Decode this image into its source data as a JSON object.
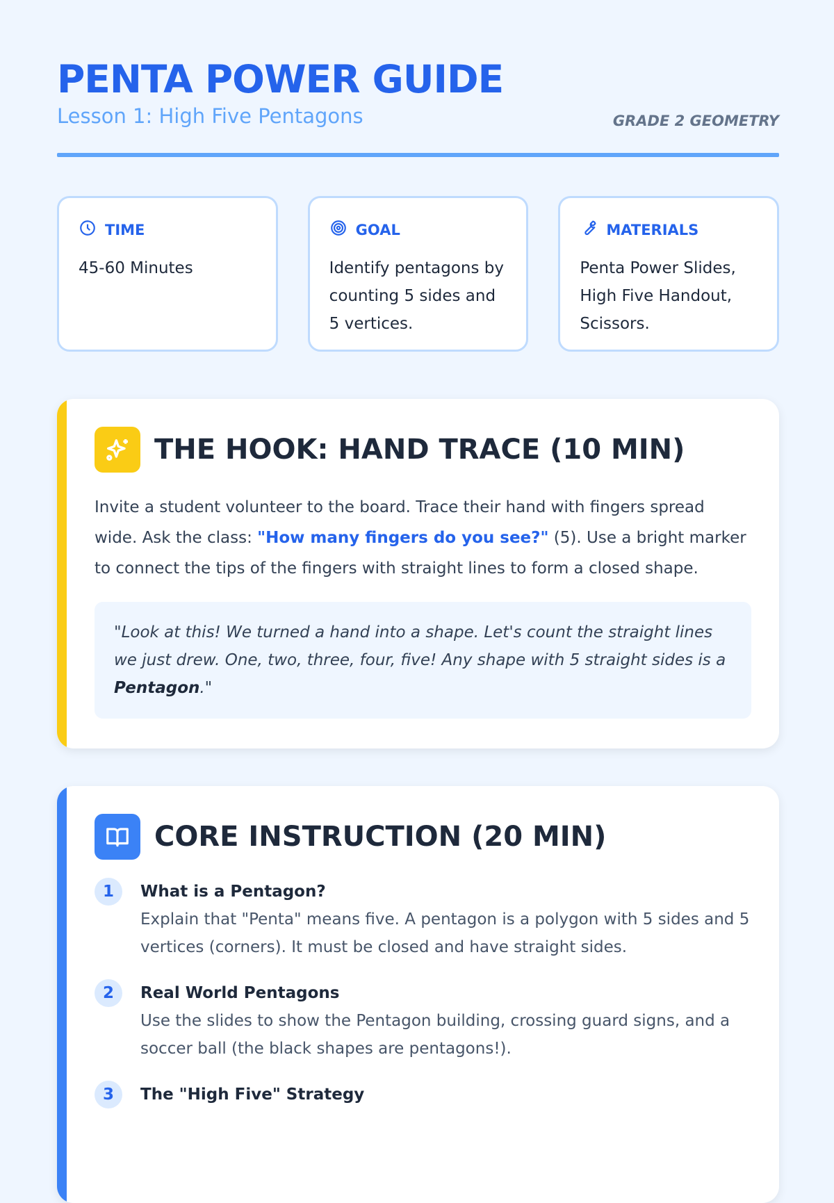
{
  "header": {
    "title": "PENTA POWER GUIDE",
    "subtitle": "Lesson 1: High Five Pentagons",
    "grade": "GRADE 2 GEOMETRY"
  },
  "info_cards": [
    {
      "icon": "clock-icon",
      "label": "TIME",
      "text": "45-60 Minutes"
    },
    {
      "icon": "target-icon",
      "label": "GOAL",
      "text": "Identify pentagons by counting 5 sides and 5 vertices."
    },
    {
      "icon": "wrench-icon",
      "label": "MATERIALS",
      "text": "Penta Power Slides, High Five Handout, Scissors."
    }
  ],
  "hook": {
    "accent": "#facc15",
    "icon": "sparkles-icon",
    "title": "THE HOOK: HAND TRACE (10 MIN)",
    "p1": "Invite a student volunteer to the board. Trace their hand with fingers spread wide. Ask the class: ",
    "highlight": "\"How many fingers do you see?\"",
    "p2": " (5). Use a bright marker to connect the tips of the fingers with straight lines to form a closed shape.",
    "quote_a": "\"Look at this! We turned a hand into a shape. Let's count the straight lines we just drew. One, two, three, four, five! Any shape with 5 straight sides is a ",
    "quote_bold": "Pentagon",
    "quote_b": ".\""
  },
  "core": {
    "accent": "#3b82f6",
    "icon": "book-open-icon",
    "title": "CORE INSTRUCTION (20 MIN)",
    "steps": [
      {
        "n": "1",
        "title": "What is a Pentagon?",
        "text": "Explain that \"Penta\" means five. A pentagon is a polygon with 5 sides and 5 vertices (corners). It must be closed and have straight sides."
      },
      {
        "n": "2",
        "title": "Real World Pentagons",
        "text": "Use the slides to show the Pentagon building, crossing guard signs, and a soccer ball (the black shapes are pentagons!)."
      },
      {
        "n": "3",
        "title": "The \"High Five\" Strategy",
        "text": ""
      }
    ]
  }
}
